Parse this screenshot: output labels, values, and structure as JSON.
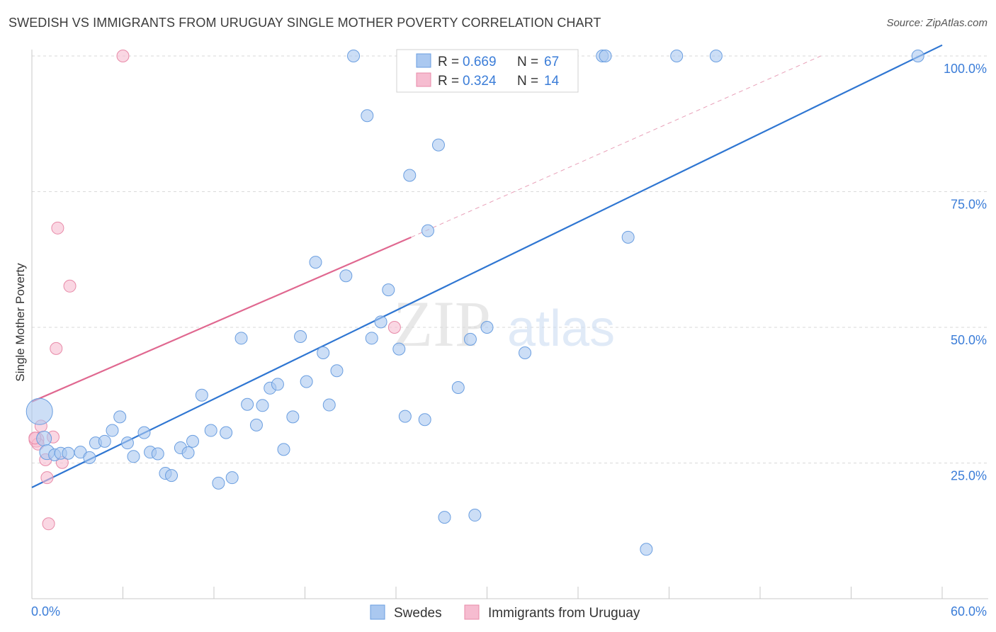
{
  "header": {
    "title": "SWEDISH VS IMMIGRANTS FROM URUGUAY SINGLE MOTHER POVERTY CORRELATION CHART",
    "source": "Source: ZipAtlas.com"
  },
  "watermark": {
    "zip": "ZIP",
    "atlas": "atlas"
  },
  "colors": {
    "blue_fill": "#aac8f0",
    "blue_stroke": "#6a9ee0",
    "blue_line": "#2f76d2",
    "pink_fill": "#f6bcd0",
    "pink_stroke": "#e88aa8",
    "pink_line": "#e06890",
    "accent_text": "#3b7dd8",
    "grid": "#d9d9d9"
  },
  "legend": {
    "r_label": "R =",
    "n_label": "N =",
    "series": [
      {
        "r": "0.669",
        "n": "67"
      },
      {
        "r": "0.324",
        "n": "14"
      }
    ]
  },
  "chart_data": {
    "type": "scatter",
    "title": "SWEDISH VS IMMIGRANTS FROM URUGUAY SINGLE MOTHER POVERTY CORRELATION CHART",
    "xlabel": "",
    "ylabel": "Single Mother Poverty",
    "xlim": [
      0,
      60
    ],
    "ylim": [
      0,
      102
    ],
    "x_tick_labels": [
      "0.0%",
      "60.0%"
    ],
    "y_ticks": [
      25,
      50,
      75,
      100
    ],
    "y_tick_labels": [
      "25.0%",
      "50.0%",
      "75.0%",
      "100.0%"
    ],
    "grid": true,
    "legend_position": "top-center",
    "series": [
      {
        "name": "Swedes",
        "color": "#aac8f0",
        "trend": {
          "x0": 0,
          "y0": 20.5,
          "x1": 60,
          "y1": 102
        },
        "points": [
          [
            0.5,
            34.5,
            18
          ],
          [
            0.8,
            29.5,
            10
          ],
          [
            1.0,
            27.0,
            10
          ],
          [
            1.5,
            26.5,
            8
          ],
          [
            1.9,
            26.8,
            8
          ],
          [
            2.4,
            26.8,
            8
          ],
          [
            3.2,
            27.0,
            8
          ],
          [
            3.8,
            26.0,
            8
          ],
          [
            4.2,
            28.7,
            8
          ],
          [
            4.8,
            29.0,
            8
          ],
          [
            5.3,
            31.0,
            8
          ],
          [
            5.8,
            33.5,
            8
          ],
          [
            6.3,
            28.7,
            8
          ],
          [
            6.7,
            26.2,
            8
          ],
          [
            7.4,
            30.6,
            8
          ],
          [
            7.8,
            27.0,
            8
          ],
          [
            8.3,
            26.7,
            8
          ],
          [
            8.8,
            23.1,
            8
          ],
          [
            9.2,
            22.7,
            8
          ],
          [
            9.8,
            27.8,
            8
          ],
          [
            10.3,
            26.9,
            8
          ],
          [
            10.6,
            29.0,
            8
          ],
          [
            11.2,
            37.5,
            8
          ],
          [
            11.8,
            31.0,
            8
          ],
          [
            12.3,
            21.3,
            8
          ],
          [
            12.8,
            30.6,
            8
          ],
          [
            13.2,
            22.3,
            8
          ],
          [
            13.8,
            48.0,
            8
          ],
          [
            14.2,
            35.8,
            8
          ],
          [
            14.8,
            32.0,
            8
          ],
          [
            15.2,
            35.6,
            8
          ],
          [
            15.7,
            38.8,
            8
          ],
          [
            16.2,
            39.5,
            8
          ],
          [
            16.6,
            27.5,
            8
          ],
          [
            17.2,
            33.5,
            8
          ],
          [
            17.7,
            48.3,
            8
          ],
          [
            18.1,
            40.0,
            8
          ],
          [
            18.7,
            62.0,
            8
          ],
          [
            19.2,
            45.3,
            8
          ],
          [
            19.6,
            35.7,
            8
          ],
          [
            20.1,
            42.0,
            8
          ],
          [
            20.7,
            59.5,
            8
          ],
          [
            21.2,
            100,
            8
          ],
          [
            22.1,
            89.0,
            8
          ],
          [
            22.4,
            48.0,
            8
          ],
          [
            23.0,
            51.0,
            8
          ],
          [
            23.5,
            56.9,
            8
          ],
          [
            24.2,
            46.0,
            8
          ],
          [
            24.6,
            33.6,
            8
          ],
          [
            24.9,
            78.0,
            8
          ],
          [
            25.9,
            33.0,
            8
          ],
          [
            26.1,
            67.8,
            8
          ],
          [
            26.8,
            83.6,
            8
          ],
          [
            27.2,
            15.0,
            8
          ],
          [
            28.1,
            38.9,
            8
          ],
          [
            28.9,
            47.8,
            8
          ],
          [
            29.2,
            15.4,
            8
          ],
          [
            30.0,
            50.0,
            8
          ],
          [
            31.1,
            100,
            8
          ],
          [
            32.5,
            45.3,
            8
          ],
          [
            37.6,
            100,
            8
          ],
          [
            37.8,
            100,
            8
          ],
          [
            39.3,
            66.6,
            8
          ],
          [
            40.5,
            9.1,
            8
          ],
          [
            42.5,
            100,
            8
          ],
          [
            45.1,
            100,
            8
          ],
          [
            58.4,
            100,
            8
          ]
        ]
      },
      {
        "name": "Immigrants from Uruguay",
        "color": "#f6bcd0",
        "trend": {
          "x0": 0,
          "y0": 36.3,
          "x1": 25,
          "y1": 66.6
        },
        "trend_dashed": {
          "x0": 25,
          "y0": 66.6,
          "x1": 52,
          "y1": 100
        },
        "points": [
          [
            0.3,
            29.3,
            10
          ],
          [
            0.4,
            28.5,
            8
          ],
          [
            0.6,
            31.8,
            8
          ],
          [
            0.9,
            25.6,
            8
          ],
          [
            1.0,
            22.3,
            8
          ],
          [
            1.1,
            13.8,
            8
          ],
          [
            1.4,
            29.8,
            8
          ],
          [
            1.6,
            46.1,
            8
          ],
          [
            1.7,
            68.3,
            8
          ],
          [
            2.0,
            25.1,
            8
          ],
          [
            2.5,
            57.6,
            8
          ],
          [
            6.0,
            100,
            8
          ],
          [
            23.9,
            50.0,
            8
          ],
          [
            0.2,
            29.6,
            8
          ]
        ]
      }
    ]
  }
}
